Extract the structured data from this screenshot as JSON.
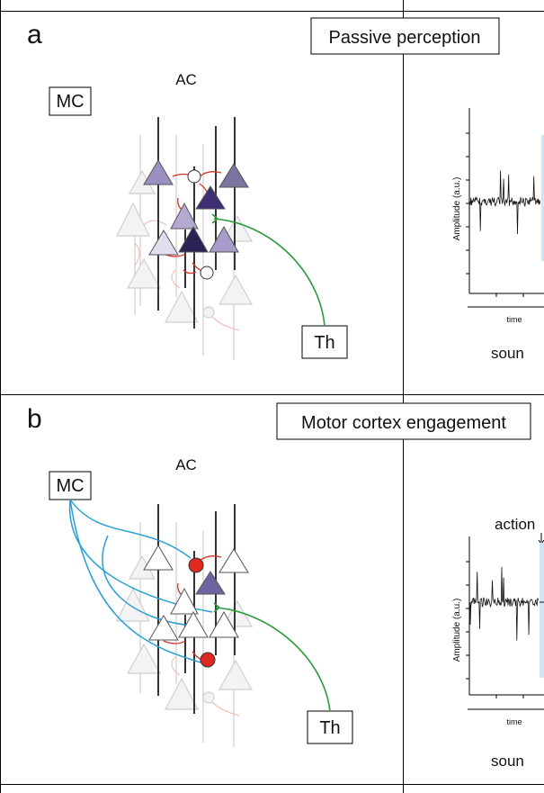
{
  "panel_a": {
    "letter": "a",
    "title": "Passive perception",
    "label_mc": "MC",
    "label_ac": "AC",
    "label_th": "Th",
    "y_axis_label": "Amplitude (a.u.)",
    "x_axis_label": "time",
    "bottom_caption": "soun",
    "colors": {
      "thalamic_input": "#2a9a3c",
      "local_connection": "#d8332b",
      "neuron_outline": "#444444"
    }
  },
  "panel_b": {
    "letter": "b",
    "title": "Motor cortex engagement",
    "label_mc": "MC",
    "label_ac": "AC",
    "label_th": "Th",
    "action_label": "action",
    "y_axis_label": "Amplitude (a.u.)",
    "x_axis_label": "time",
    "bottom_caption": "soun",
    "colors": {
      "motor_input": "#2a9fd6",
      "thalamic_input": "#2a9a3c",
      "inhibitory_neuron": "#e0281f",
      "action_window": "#cfe5f5"
    }
  }
}
